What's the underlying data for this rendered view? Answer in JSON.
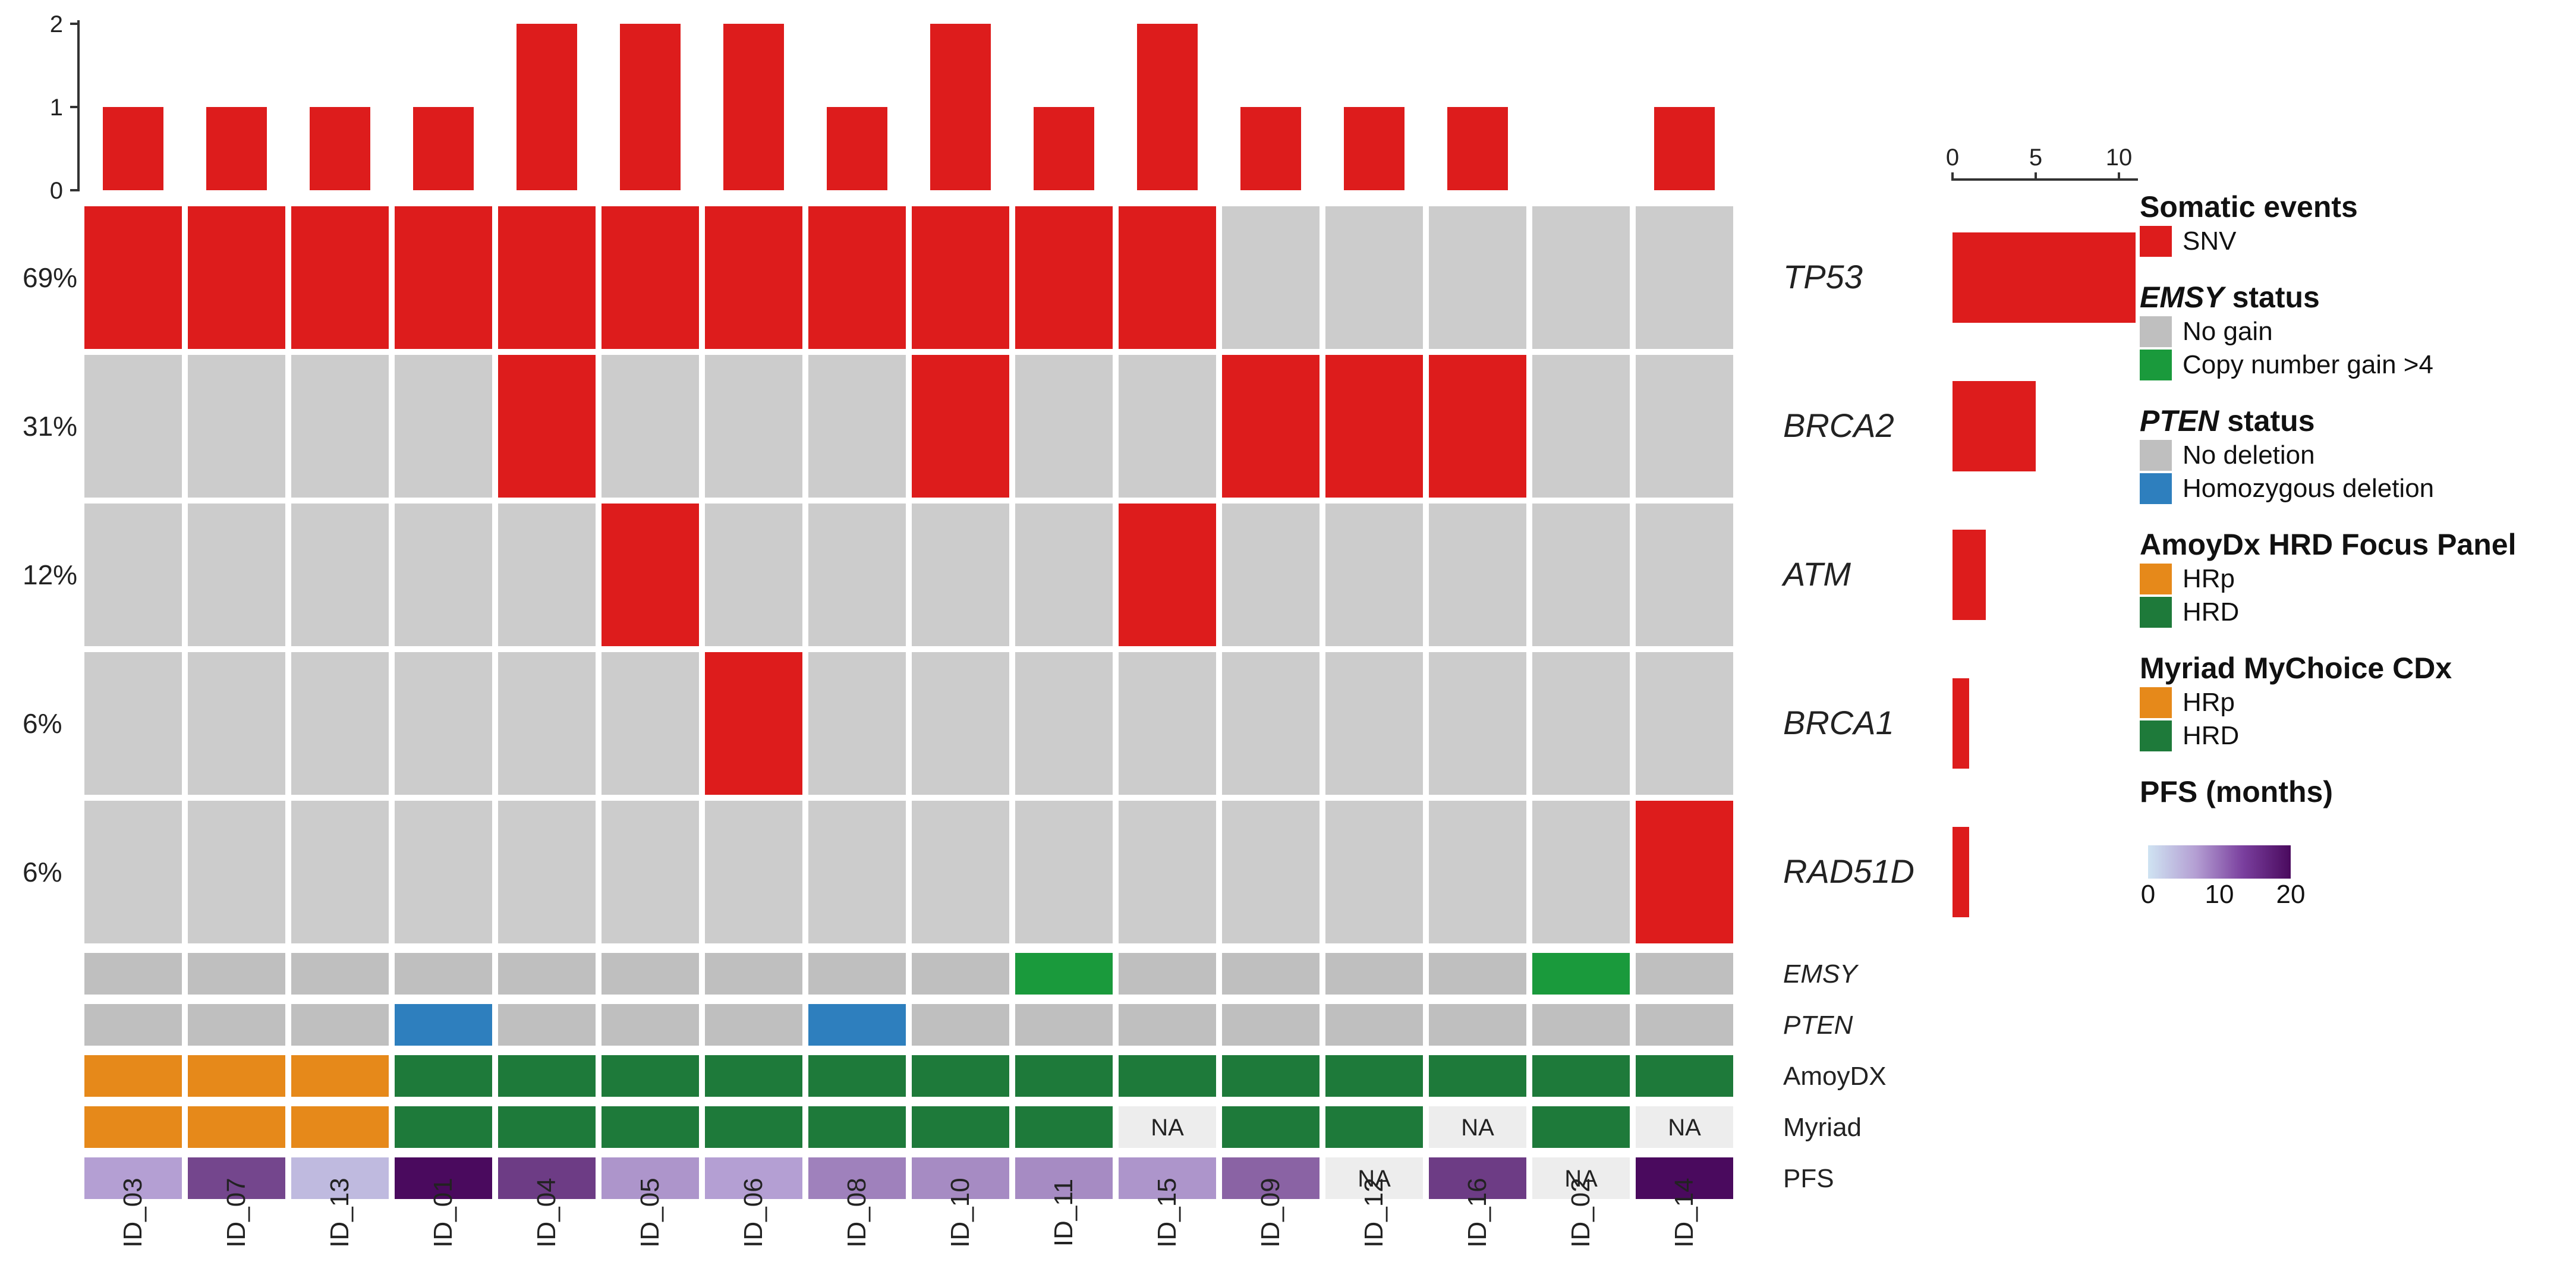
{
  "chart_data": {
    "type": "heatmap",
    "title": "",
    "samples": [
      "ID_03",
      "ID_07",
      "ID_13",
      "ID_01",
      "ID_04",
      "ID_05",
      "ID_06",
      "ID_08",
      "ID_10",
      "ID_11",
      "ID_15",
      "ID_09",
      "ID_12",
      "ID_16",
      "ID_02",
      "ID_14"
    ],
    "top_bar": {
      "values": [
        1,
        1,
        1,
        1,
        2,
        2,
        2,
        1,
        2,
        1,
        2,
        1,
        1,
        1,
        0,
        1
      ],
      "ticks": [
        "0",
        "1",
        "2"
      ],
      "ylim": [
        0,
        2
      ]
    },
    "genes": [
      {
        "name": "TP53",
        "percent": "69%",
        "count": 11,
        "mutated": [
          1,
          1,
          1,
          1,
          1,
          1,
          1,
          1,
          1,
          1,
          1,
          0,
          0,
          0,
          0,
          0
        ]
      },
      {
        "name": "BRCA2",
        "percent": "31%",
        "count": 5,
        "mutated": [
          0,
          0,
          0,
          0,
          1,
          0,
          0,
          0,
          1,
          0,
          0,
          1,
          1,
          1,
          0,
          0
        ]
      },
      {
        "name": "ATM",
        "percent": "12%",
        "count": 2,
        "mutated": [
          0,
          0,
          0,
          0,
          0,
          1,
          0,
          0,
          0,
          0,
          1,
          0,
          0,
          0,
          0,
          0
        ]
      },
      {
        "name": "BRCA1",
        "percent": "6%",
        "count": 1,
        "mutated": [
          0,
          0,
          0,
          0,
          0,
          0,
          1,
          0,
          0,
          0,
          0,
          0,
          0,
          0,
          0,
          0
        ]
      },
      {
        "name": "RAD51D",
        "percent": "6%",
        "count": 1,
        "mutated": [
          0,
          0,
          0,
          0,
          0,
          0,
          0,
          0,
          0,
          0,
          0,
          0,
          0,
          0,
          0,
          1
        ]
      }
    ],
    "right_bar": {
      "ticks": [
        "0",
        "5",
        "10"
      ],
      "xlim": [
        0,
        11
      ]
    },
    "annotations": [
      {
        "name": "EMSY",
        "italic": true,
        "values": [
          "No gain",
          "No gain",
          "No gain",
          "No gain",
          "No gain",
          "No gain",
          "No gain",
          "No gain",
          "No gain",
          "Copy number gain >4",
          "No gain",
          "No gain",
          "No gain",
          "No gain",
          "Copy number gain >4",
          "No gain"
        ]
      },
      {
        "name": "PTEN",
        "italic": true,
        "values": [
          "No deletion",
          "No deletion",
          "No deletion",
          "Homozygous deletion",
          "No deletion",
          "No deletion",
          "No deletion",
          "Homozygous deletion",
          "No deletion",
          "No deletion",
          "No deletion",
          "No deletion",
          "No deletion",
          "No deletion",
          "No deletion",
          "No deletion"
        ]
      },
      {
        "name": "AmoyDX",
        "italic": false,
        "values": [
          "HRp",
          "HRp",
          "HRp",
          "HRD",
          "HRD",
          "HRD",
          "HRD",
          "HRD",
          "HRD",
          "HRD",
          "HRD",
          "HRD",
          "HRD",
          "HRD",
          "HRD",
          "HRD"
        ]
      },
      {
        "name": "Myriad",
        "italic": false,
        "values": [
          "HRp",
          "HRp",
          "HRp",
          "HRD",
          "HRD",
          "HRD",
          "HRD",
          "HRD",
          "HRD",
          "HRD",
          "NA",
          "HRD",
          "HRD",
          "NA",
          "HRD",
          "NA"
        ]
      },
      {
        "name": "PFS",
        "italic": false,
        "values": [
          5,
          14,
          3,
          20,
          15,
          6,
          5,
          8,
          7,
          7,
          6,
          11,
          "NA",
          15,
          "NA",
          20
        ]
      }
    ],
    "na_label": "NA",
    "colors": {
      "snv": "#dd1c1c",
      "empty": "#cccccc",
      "annotation_empty": "#bfbfbf",
      "na_fill": "#ededed",
      "emsy_gain": "#1a9a3c",
      "pten_deletion": "#2e7fbe",
      "hrp": "#e6891a",
      "hrd": "#1e7a3a",
      "pfs_low": "#cfe3f2",
      "pfs_mid": "#b49fd3",
      "pfs_high": "#4a0a5e"
    }
  },
  "legend": {
    "somatic": {
      "title": "Somatic events",
      "items": [
        {
          "label": "SNV",
          "color": "#dd1c1c"
        }
      ]
    },
    "emsy": {
      "title_gene": "EMSY",
      "title_rest": " status",
      "items": [
        {
          "label": "No gain",
          "color": "#bfbfbf"
        },
        {
          "label": "Copy number gain >4",
          "color": "#1a9a3c"
        }
      ]
    },
    "pten": {
      "title_gene": "PTEN",
      "title_rest": " status",
      "items": [
        {
          "label": "No deletion",
          "color": "#bfbfbf"
        },
        {
          "label": "Homozygous deletion",
          "color": "#2e7fbe"
        }
      ]
    },
    "amoy": {
      "title": "AmoyDx HRD Focus Panel",
      "items": [
        {
          "label": "HRp",
          "color": "#e6891a"
        },
        {
          "label": "HRD",
          "color": "#1e7a3a"
        }
      ]
    },
    "myriad": {
      "title": "Myriad MyChoice CDx",
      "items": [
        {
          "label": "HRp",
          "color": "#e6891a"
        },
        {
          "label": "HRD",
          "color": "#1e7a3a"
        }
      ]
    },
    "pfs": {
      "title": "PFS (months)",
      "ticks": [
        "0",
        "10",
        "20"
      ]
    }
  }
}
